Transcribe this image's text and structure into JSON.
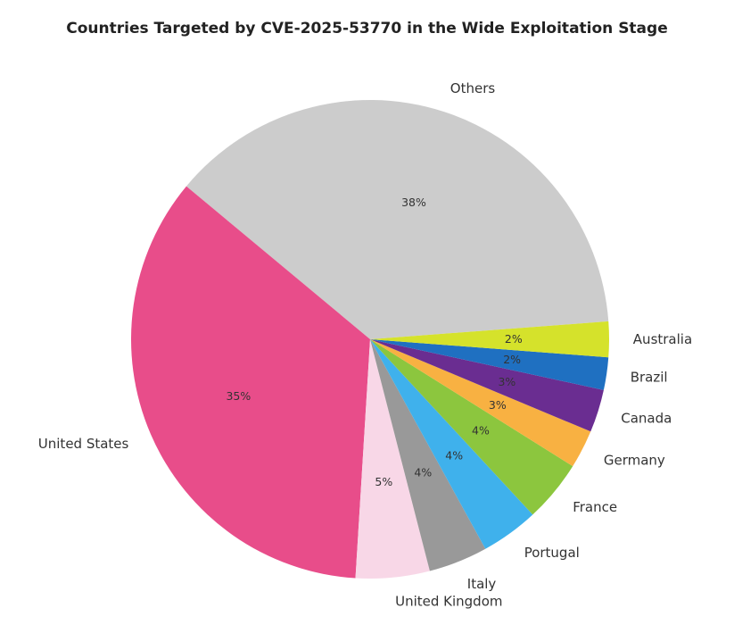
{
  "chart_data": {
    "type": "pie",
    "title": "Countries Targeted by CVE-2025-53770 in the Wide Exploitation Stage",
    "labels": [
      "Others",
      "United States",
      "United Kingdom",
      "Italy",
      "Portugal",
      "France",
      "Germany",
      "Canada",
      "Brazil",
      "Australia"
    ],
    "values": [
      37.8,
      35.1,
      5.0,
      4.0,
      3.9,
      4.2,
      2.6,
      2.9,
      2.2,
      2.4
    ],
    "pct_labels": [
      "38%",
      "35%",
      "5%",
      "4%",
      "4%",
      "4%",
      "3%",
      "3%",
      "2%",
      "2%"
    ],
    "colors": [
      "#cccccc",
      "#e84d8a",
      "#f8d7e7",
      "#999999",
      "#3fb1ec",
      "#8cc63e",
      "#f8b142",
      "#6a2d91",
      "#1f70c1",
      "#d5e22b"
    ],
    "start_angle_deg": 4.3,
    "direction": "counterclockwise"
  }
}
